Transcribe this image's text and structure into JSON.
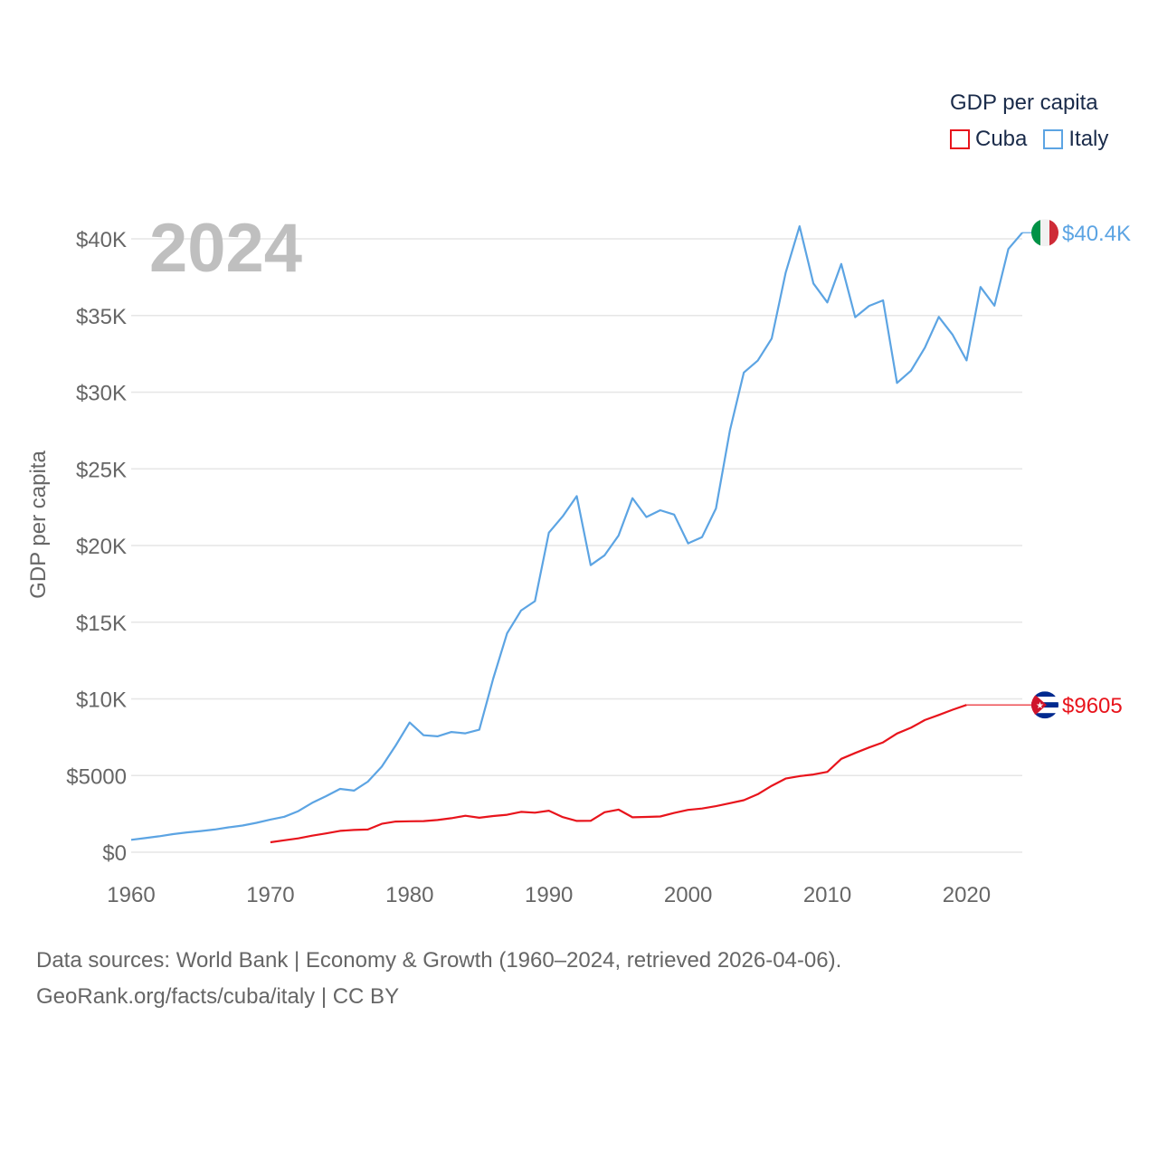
{
  "chart_data": {
    "type": "line",
    "year_label": "2024",
    "ylabel": "GDP per capita",
    "xlim": [
      1960,
      2024
    ],
    "ylim": [
      0,
      42000
    ],
    "x_ticks": [
      1960,
      1970,
      1980,
      1990,
      2000,
      2010,
      2020
    ],
    "x_tick_labels": [
      "1960",
      "1970",
      "1980",
      "1990",
      "2000",
      "2010",
      "2020"
    ],
    "y_ticks": [
      0,
      5000,
      10000,
      15000,
      20000,
      25000,
      30000,
      35000,
      40000
    ],
    "y_tick_labels": [
      "$0",
      "$5000",
      "$10K",
      "$15K",
      "$20K",
      "$25K",
      "$30K",
      "$35K",
      "$40K"
    ],
    "legend": {
      "title": "GDP per capita",
      "position": "top-right"
    },
    "series": [
      {
        "name": "Cuba",
        "color": "#e8141c",
        "end_label": "$9605",
        "end_value": 9605,
        "flag": "cuba-flag",
        "x": [
          1970,
          1971,
          1972,
          1973,
          1974,
          1975,
          1976,
          1977,
          1978,
          1979,
          1980,
          1981,
          1982,
          1983,
          1984,
          1985,
          1986,
          1987,
          1988,
          1989,
          1990,
          1991,
          1992,
          1993,
          1994,
          1995,
          1996,
          1997,
          1998,
          1999,
          2000,
          2001,
          2002,
          2003,
          2004,
          2005,
          2006,
          2007,
          2008,
          2009,
          2010,
          2011,
          2012,
          2013,
          2014,
          2015,
          2016,
          2017,
          2018,
          2019,
          2020
        ],
        "values": [
          650,
          780,
          900,
          1080,
          1230,
          1390,
          1450,
          1480,
          1850,
          2000,
          2020,
          2030,
          2100,
          2220,
          2380,
          2250,
          2360,
          2440,
          2630,
          2580,
          2710,
          2290,
          2040,
          2050,
          2610,
          2780,
          2280,
          2300,
          2330,
          2560,
          2760,
          2850,
          3000,
          3200,
          3390,
          3780,
          4330,
          4800,
          4960,
          5070,
          5240,
          6090,
          6470,
          6830,
          7160,
          7740,
          8120,
          8620,
          8950,
          9290,
          9605
        ]
      },
      {
        "name": "Italy",
        "color": "#5ca4e3",
        "end_label": "$40.4K",
        "end_value": 40400,
        "flag": "italy-flag",
        "x": [
          1960,
          1961,
          1962,
          1963,
          1964,
          1965,
          1966,
          1967,
          1968,
          1969,
          1970,
          1971,
          1972,
          1973,
          1974,
          1975,
          1976,
          1977,
          1978,
          1979,
          1980,
          1981,
          1982,
          1983,
          1984,
          1985,
          1986,
          1987,
          1988,
          1989,
          1990,
          1991,
          1992,
          1993,
          1994,
          1995,
          1996,
          1997,
          1998,
          1999,
          2000,
          2001,
          2002,
          2003,
          2004,
          2005,
          2006,
          2007,
          2008,
          2009,
          2010,
          2011,
          2012,
          2013,
          2014,
          2015,
          2016,
          2017,
          2018,
          2019,
          2020,
          2021,
          2022,
          2023,
          2024
        ],
        "values": [
          810,
          920,
          1040,
          1180,
          1290,
          1380,
          1480,
          1620,
          1740,
          1920,
          2130,
          2310,
          2680,
          3220,
          3660,
          4130,
          4020,
          4600,
          5580,
          6960,
          8460,
          7630,
          7560,
          7840,
          7750,
          7990,
          11330,
          14270,
          15760,
          16370,
          20840,
          21910,
          23220,
          18720,
          19360,
          20650,
          23090,
          21860,
          22300,
          22020,
          20140,
          20550,
          22420,
          27500,
          31280,
          32060,
          33500,
          37780,
          40820,
          37090,
          35850,
          38360,
          34890,
          35630,
          35990,
          30600,
          31400,
          32900,
          34910,
          33740,
          32070,
          36860,
          35640,
          39340,
          40400
        ]
      }
    ]
  },
  "source": {
    "line1": "Data sources: World Bank | Economy & Growth (1960–2024, retrieved 2026-04-06).",
    "line2": "GeoRank.org/facts/cuba/italy | CC BY"
  }
}
